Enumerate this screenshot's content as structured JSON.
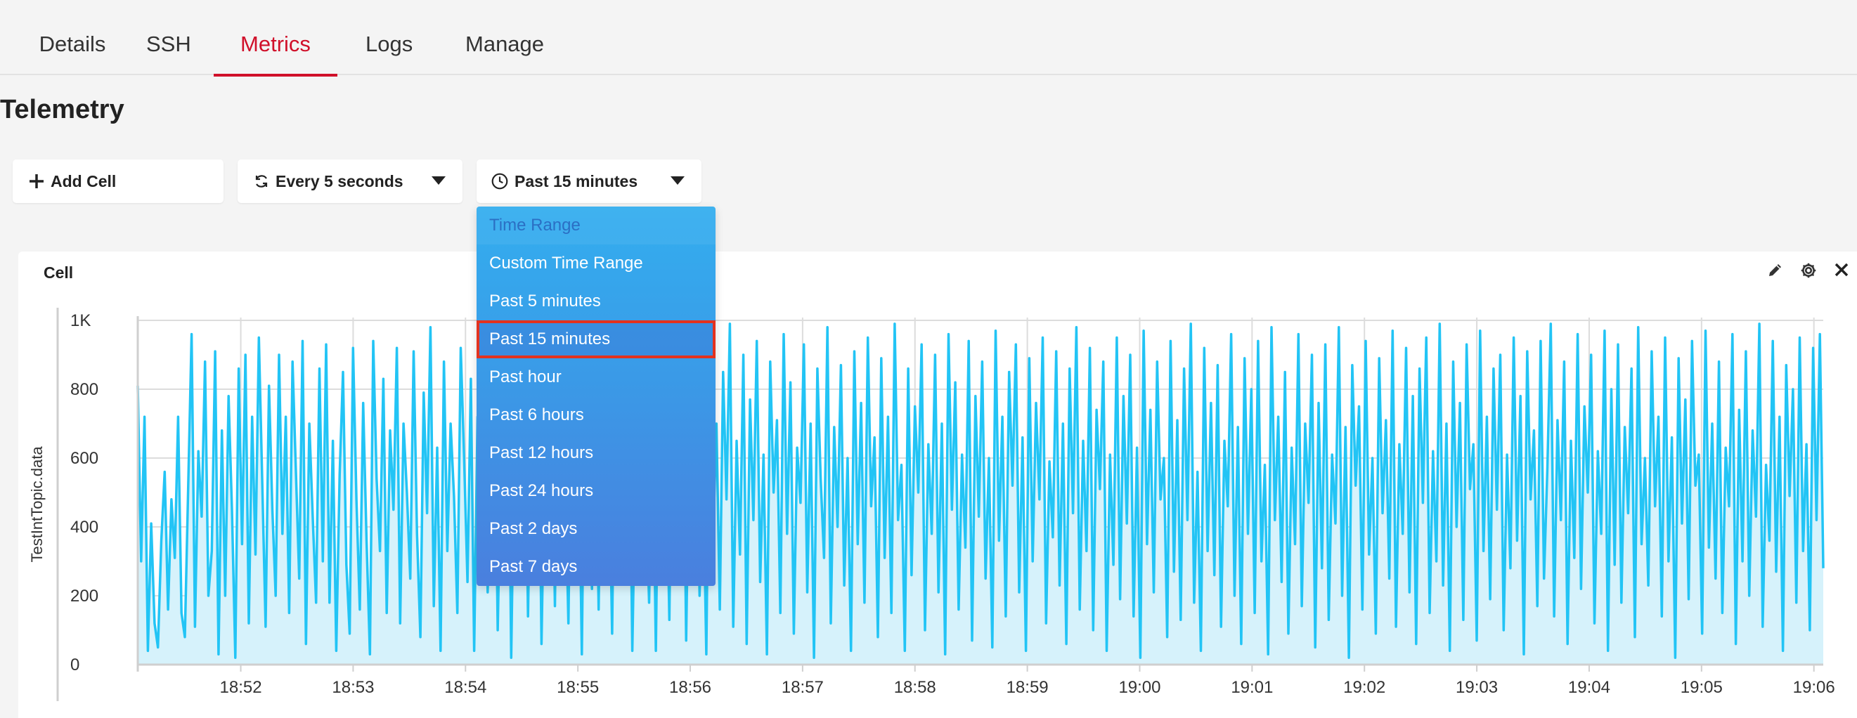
{
  "tabs": [
    {
      "label": "Details"
    },
    {
      "label": "SSH"
    },
    {
      "label": "Metrics"
    },
    {
      "label": "Logs"
    },
    {
      "label": "Manage"
    }
  ],
  "active_tab": "Metrics",
  "page_title": "Telemetry",
  "toolbar": {
    "add_cell_label": "Add Cell",
    "refresh_label": "Every 5 seconds",
    "time_range_label": "Past 15 minutes"
  },
  "dropdown": {
    "header": "Time Range",
    "items": [
      {
        "label": "Custom Time Range"
      },
      {
        "label": "Past 5 minutes"
      },
      {
        "label": "Past 15 minutes"
      },
      {
        "label": "Past hour"
      },
      {
        "label": "Past 6 hours"
      },
      {
        "label": "Past 12 hours"
      },
      {
        "label": "Past 24 hours"
      },
      {
        "label": "Past 2 days"
      },
      {
        "label": "Past 7 days"
      }
    ],
    "selected": "Past 15 minutes"
  },
  "cell": {
    "title": "Cell",
    "icons": [
      "pencil-icon",
      "gear-icon",
      "close-icon"
    ]
  },
  "colors": {
    "accent": "#d0102a",
    "line": "#22c4f5",
    "area": "#d6f2fb",
    "dropdown_top": "#33aeef",
    "dropdown_bottom": "#4a7fde",
    "selection_outline": "#e3321f"
  },
  "chart_data": {
    "type": "area",
    "ylabel": "TestIntTopic.data",
    "y_ticks": [
      "0",
      "200",
      "400",
      "600",
      "800",
      "1K"
    ],
    "ylim": [
      0,
      1000
    ],
    "x_ticks": [
      "18:52",
      "18:53",
      "18:54",
      "18:55",
      "18:56",
      "18:57",
      "18:58",
      "18:59",
      "19:00",
      "19:01",
      "19:02",
      "19:03",
      "19:04",
      "19:05",
      "19:06"
    ],
    "x_start": "18:51:05",
    "x_end": "19:06:05",
    "grid": true,
    "series": [
      {
        "values": [
          810,
          300,
          720,
          40,
          410,
          120,
          50,
          360,
          560,
          160,
          480,
          310,
          720,
          150,
          80,
          520,
          960,
          110,
          620,
          430,
          880,
          200,
          330,
          910,
          30,
          680,
          200,
          780,
          450,
          20,
          860,
          350,
          900,
          120,
          720,
          320,
          950,
          530,
          110,
          810,
          450,
          200,
          900,
          380,
          720,
          150,
          880,
          560,
          250,
          940,
          60,
          700,
          430,
          180,
          860,
          300,
          930,
          180,
          650,
          40,
          550,
          850,
          290,
          90,
          920,
          480,
          160,
          760,
          360,
          30,
          940,
          540,
          330,
          830,
          150,
          680,
          450,
          920,
          120,
          700,
          500,
          250,
          910,
          380,
          80,
          790,
          440,
          980,
          170,
          630,
          40,
          880,
          330,
          700,
          490,
          150,
          920,
          600,
          240,
          830,
          40,
          720,
          380,
          940,
          210,
          560,
          870,
          100,
          620,
          330,
          960,
          20,
          690,
          510,
          260,
          900,
          140,
          760,
          420,
          930,
          60,
          640,
          380,
          820,
          170,
          980,
          310,
          560,
          120,
          870,
          430,
          700,
          30,
          940,
          500,
          220,
          810,
          160,
          890,
          370,
          650,
          90,
          960,
          420,
          730,
          250,
          880,
          40,
          610,
          300,
          920,
          520,
          180,
          760,
          40,
          860,
          410,
          670,
          130,
          940,
          290,
          580,
          960,
          70,
          720,
          440,
          880,
          200,
          590,
          30,
          920,
          360,
          700,
          160,
          850,
          480,
          990,
          110,
          650,
          320,
          900,
          60,
          770,
          420,
          940,
          240,
          610,
          30,
          880,
          500,
          710,
          150,
          960,
          380,
          820,
          90,
          630,
          470,
          930,
          210,
          700,
          20,
          860,
          540,
          310,
          980,
          120,
          690,
          400,
          870,
          230,
          600,
          40,
          910,
          350,
          760,
          180,
          950,
          460,
          660,
          80,
          890,
          310,
          720,
          150,
          990,
          420,
          580,
          40,
          860,
          260,
          750,
          500,
          930,
          100,
          640,
          380,
          900,
          210,
          700,
          30,
          960,
          450,
          820,
          160,
          610,
          340,
          940,
          70,
          780,
          430,
          880,
          250,
          600,
          50,
          970,
          360,
          720,
          140,
          850,
          520,
          930,
          210,
          660,
          40,
          890,
          300,
          760,
          480,
          950,
          120,
          590,
          370,
          910,
          230,
          700,
          60,
          860,
          440,
          980,
          160,
          650,
          330,
          920,
          100,
          740,
          510,
          880,
          40,
          610,
          290,
          950,
          190,
          780,
          410,
          900,
          140,
          630,
          20,
          970,
          350,
          740,
          210,
          880,
          480,
          600,
          80,
          940,
          270,
          710,
          130,
          860,
          420,
          990,
          180,
          560,
          40,
          920,
          330,
          760,
          260,
          870,
          110,
          650,
          460,
          960,
          200,
          690,
          60,
          890,
          380,
          800,
          150,
          940,
          300,
          580,
          30,
          980,
          420,
          720,
          240,
          850,
          90,
          630,
          350,
          960,
          170,
          700,
          470,
          900,
          50,
          760,
          280,
          930,
          130,
          610,
          410,
          980,
          200,
          690,
          20,
          870,
          520,
          750,
          160,
          940,
          320,
          600,
          90,
          890,
          440,
          710,
          250,
          970,
          110,
          640,
          380,
          920,
          210,
          780,
          60,
          860,
          470,
          950,
          150,
          620,
          300,
          990,
          230,
          700,
          40,
          880,
          400,
          760,
          130,
          930,
          510,
          640,
          70,
          970,
          330,
          720,
          190,
          860,
          450,
          900,
          100,
          610,
          280,
          950,
          360,
          780,
          30,
          910,
          480,
          680,
          170,
          940,
          250,
          570,
          990,
          140,
          710,
          420,
          880,
          60,
          650,
          310,
          960,
          220,
          750,
          500,
          900,
          120,
          620,
          380,
          970,
          40,
          800,
          290,
          930,
          180,
          690,
          440,
          860,
          80,
          980,
          350,
          600,
          230,
          910,
          460,
          720,
          140,
          950,
          300,
          660,
          20,
          890,
          410,
          770,
          190,
          940,
          520,
          610,
          90,
          970,
          340,
          700,
          250,
          880,
          150,
          630,
          460,
          960,
          60,
          740,
          300,
          910,
          200,
          680,
          430,
          990,
          110,
          580,
          360,
          940,
          270,
          720,
          40,
          870,
          490,
          800,
          180,
          950,
          330,
          640,
          100,
          920,
          420,
          960,
          280
        ]
      }
    ]
  }
}
